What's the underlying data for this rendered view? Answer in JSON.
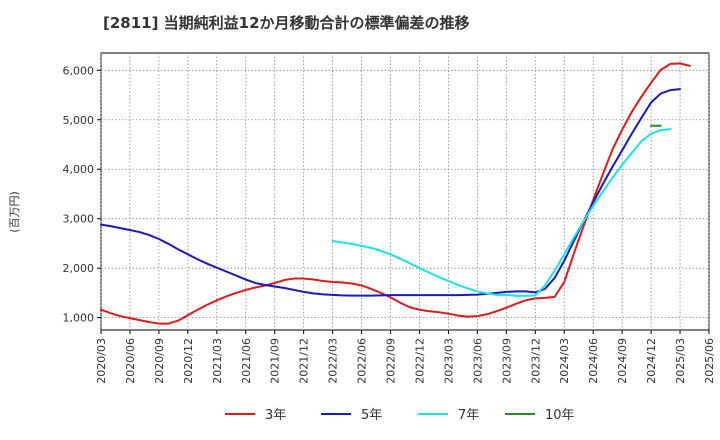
{
  "chart_data": {
    "type": "line",
    "title": "[2811]  当期純利益12か月移動合計の標準偏差の推移",
    "ylabel": "(百万円)",
    "xlabel": "",
    "ylim": [
      750,
      6350
    ],
    "yticks": [
      {
        "value": 1000,
        "label": "1,000"
      },
      {
        "value": 2000,
        "label": "2,000"
      },
      {
        "value": 3000,
        "label": "3,000"
      },
      {
        "value": 4000,
        "label": "4,000"
      },
      {
        "value": 5000,
        "label": "5,000"
      },
      {
        "value": 6000,
        "label": "6,000"
      }
    ],
    "xticks": [
      "2020/03",
      "2020/06",
      "2020/09",
      "2020/12",
      "2021/03",
      "2021/06",
      "2021/09",
      "2021/12",
      "2022/03",
      "2022/06",
      "2022/09",
      "2022/12",
      "2023/03",
      "2023/06",
      "2023/09",
      "2023/12",
      "2024/03",
      "2024/06",
      "2024/09",
      "2024/12",
      "2025/03",
      "2025/06"
    ],
    "grid": true,
    "legend_position": "bottom",
    "series": [
      {
        "name": "3年",
        "color": "#dd1c1c",
        "start": "2020/03",
        "values": [
          1160,
          1090,
          1030,
          990,
          950,
          910,
          880,
          880,
          940,
          1050,
          1160,
          1260,
          1350,
          1430,
          1500,
          1560,
          1610,
          1650,
          1700,
          1760,
          1790,
          1790,
          1770,
          1740,
          1720,
          1710,
          1690,
          1650,
          1580,
          1500,
          1410,
          1300,
          1210,
          1160,
          1130,
          1110,
          1080,
          1040,
          1020,
          1030,
          1070,
          1130,
          1200,
          1280,
          1350,
          1390,
          1400,
          1420,
          1720,
          2300,
          2850,
          3380,
          3900,
          4400,
          4800,
          5160,
          5470,
          5750,
          6010,
          6130,
          6140,
          6090
        ]
      },
      {
        "name": "5年",
        "color": "#1919c0",
        "start": "2020/03",
        "values": [
          2880,
          2850,
          2810,
          2770,
          2730,
          2670,
          2590,
          2490,
          2380,
          2280,
          2180,
          2090,
          2010,
          1930,
          1850,
          1770,
          1700,
          1660,
          1630,
          1600,
          1560,
          1520,
          1490,
          1470,
          1460,
          1450,
          1445,
          1445,
          1445,
          1450,
          1455,
          1455,
          1455,
          1455,
          1455,
          1455,
          1455,
          1455,
          1460,
          1465,
          1480,
          1500,
          1520,
          1530,
          1530,
          1510,
          1580,
          1800,
          2150,
          2550,
          2950,
          3330,
          3700,
          4050,
          4380,
          4720,
          5040,
          5350,
          5530,
          5600,
          5620
        ]
      },
      {
        "name": "7年",
        "color": "#19e5e5",
        "start": "2022/03",
        "values": [
          2550,
          2520,
          2490,
          2450,
          2410,
          2350,
          2280,
          2190,
          2100,
          2000,
          1910,
          1820,
          1740,
          1660,
          1590,
          1530,
          1490,
          1460,
          1460,
          1440,
          1440,
          1450,
          1650,
          1950,
          2280,
          2620,
          2950,
          3260,
          3550,
          3830,
          4090,
          4330,
          4570,
          4720,
          4790,
          4810
        ]
      },
      {
        "name": "10年",
        "color": "#2a8a2a",
        "start": "2024/12",
        "values": [
          4880,
          4880
        ]
      }
    ]
  }
}
